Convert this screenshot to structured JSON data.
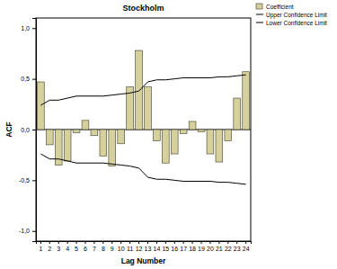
{
  "chart_data": {
    "type": "bar",
    "title": "Stockholm",
    "x_label": "Lag Number",
    "y_label": "ACF",
    "categories": [
      "1",
      "2",
      "3",
      "4",
      "5",
      "6",
      "7",
      "8",
      "9",
      "10",
      "11",
      "12",
      "13",
      "14",
      "15",
      "16",
      "17",
      "18",
      "19",
      "20",
      "21",
      "22",
      "23",
      "24"
    ],
    "series": [
      {
        "name": "Coefficient",
        "type": "bar",
        "color": "#d6d19c",
        "values": [
          0.47,
          -0.15,
          -0.35,
          -0.31,
          -0.03,
          0.09,
          -0.06,
          -0.26,
          -0.36,
          -0.14,
          0.42,
          0.78,
          0.42,
          -0.11,
          -0.33,
          -0.24,
          -0.04,
          0.08,
          -0.02,
          -0.24,
          -0.32,
          -0.11,
          0.31,
          0.57
        ]
      },
      {
        "name": "Upper Confidence Limit",
        "type": "line",
        "color": "#000000",
        "values": [
          0.24,
          0.29,
          0.29,
          0.31,
          0.33,
          0.33,
          0.33,
          0.33,
          0.34,
          0.35,
          0.36,
          0.38,
          0.47,
          0.49,
          0.49,
          0.5,
          0.51,
          0.51,
          0.51,
          0.51,
          0.52,
          0.52,
          0.53,
          0.54
        ]
      },
      {
        "name": "Lower Confidence Limit",
        "type": "line",
        "color": "#000000",
        "values": [
          -0.24,
          -0.29,
          -0.29,
          -0.31,
          -0.33,
          -0.33,
          -0.33,
          -0.33,
          -0.34,
          -0.35,
          -0.36,
          -0.38,
          -0.47,
          -0.49,
          -0.49,
          -0.5,
          -0.51,
          -0.51,
          -0.51,
          -0.51,
          -0.52,
          -0.52,
          -0.53,
          -0.54
        ]
      }
    ],
    "ylim": [
      -1.1,
      1.1
    ],
    "yticks": [
      {
        "value": -1.0,
        "label": "-1,0"
      },
      {
        "value": -0.5,
        "label": "-0,5"
      },
      {
        "value": 0.0,
        "label": "0,0"
      },
      {
        "value": 0.5,
        "label": "0,5"
      },
      {
        "value": 1.0,
        "label": "1,0"
      }
    ],
    "grid": false,
    "legend": "top-right"
  }
}
